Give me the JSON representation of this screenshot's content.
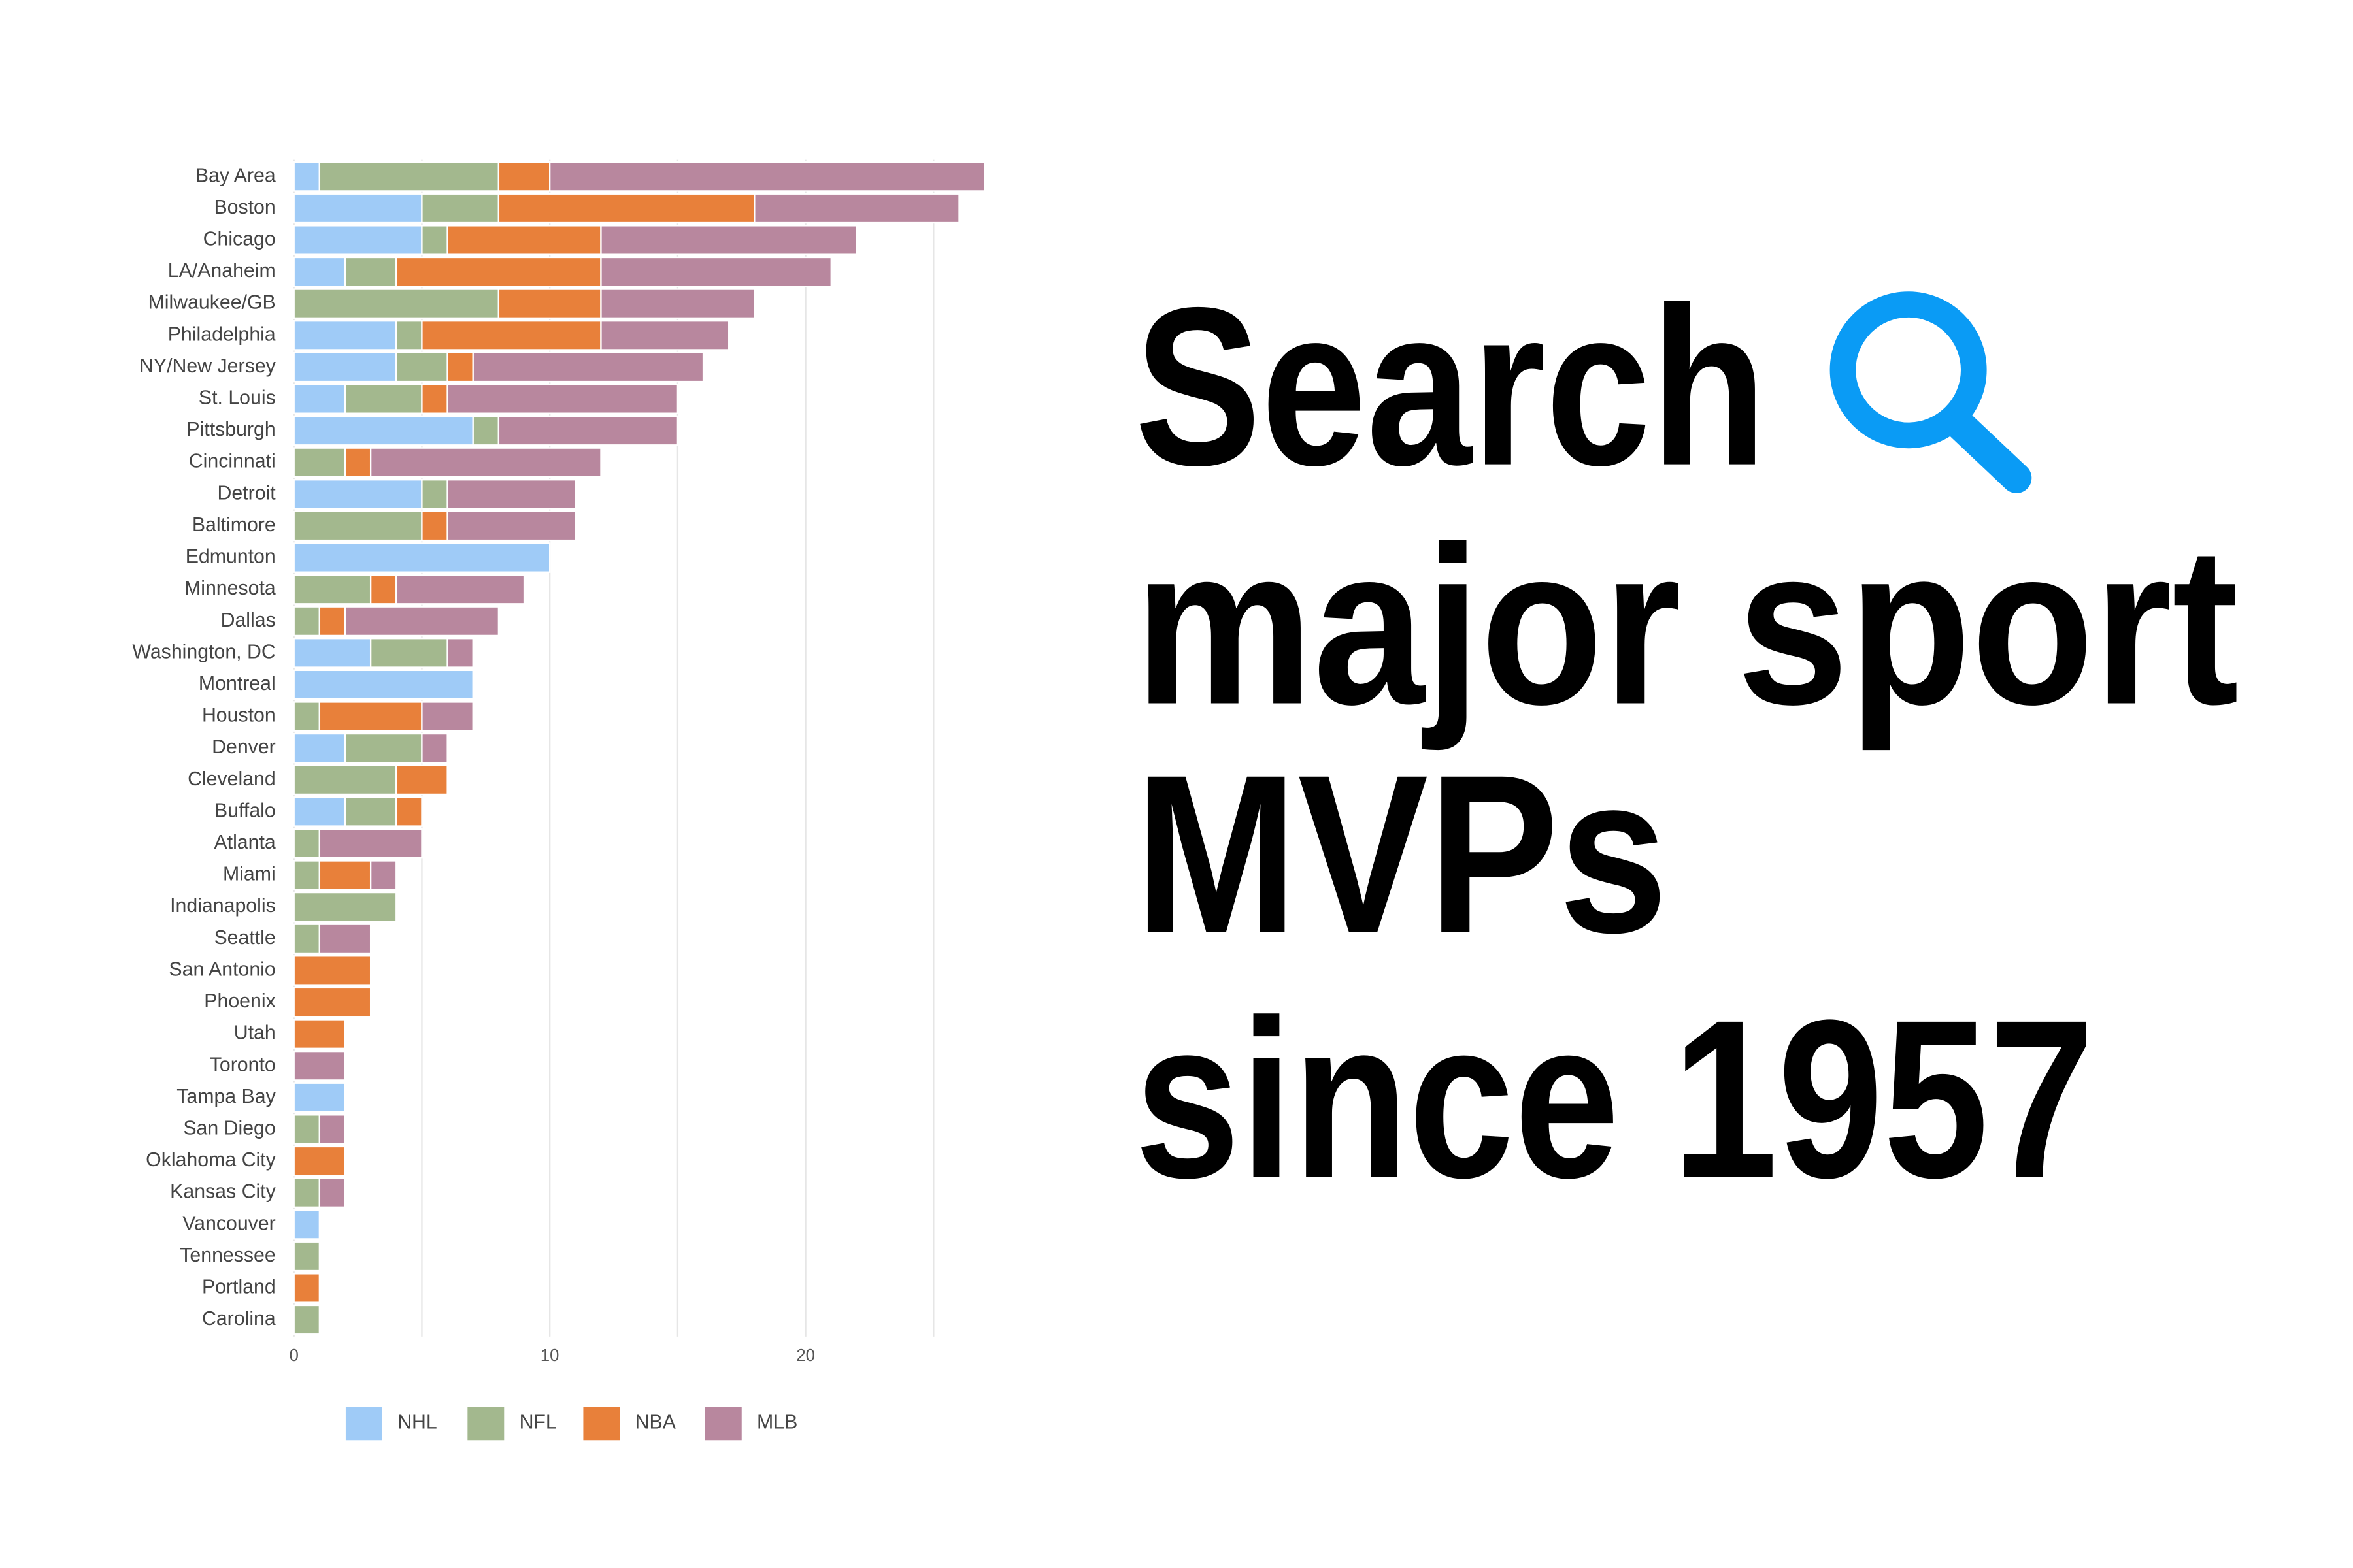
{
  "headline": [
    "Search",
    "major sport",
    "MVPs",
    "since 1957"
  ],
  "chart_data": {
    "type": "stacked-bar-horizontal",
    "categories": [
      "Bay Area",
      "Boston",
      "Chicago",
      "LA/Anaheim",
      "Milwaukee/GB",
      "Philadelphia",
      "NY/New Jersey",
      "St. Louis",
      "Pittsburgh",
      "Cincinnati",
      "Detroit",
      "Baltimore",
      "Edmunton",
      "Minnesota",
      "Dallas",
      "Washington, DC",
      "Montreal",
      "Houston",
      "Denver",
      "Cleveland",
      "Buffalo",
      "Atlanta",
      "Miami",
      "Indianapolis",
      "Seattle",
      "San Antonio",
      "Phoenix",
      "Utah",
      "Toronto",
      "Tampa Bay",
      "San Diego",
      "Oklahoma City",
      "Kansas City",
      "Vancouver",
      "Tennessee",
      "Portland",
      "Carolina"
    ],
    "series": [
      {
        "name": "NHL",
        "color": "#9fcbf7",
        "values": [
          1,
          5,
          5,
          2,
          0,
          4,
          4,
          2,
          7,
          0,
          5,
          0,
          10,
          0,
          0,
          3,
          7,
          0,
          2,
          0,
          2,
          0,
          0,
          0,
          0,
          0,
          0,
          0,
          0,
          2,
          0,
          0,
          0,
          1,
          0,
          0,
          0
        ]
      },
      {
        "name": "NFL",
        "color": "#a3b88e",
        "values": [
          7,
          3,
          1,
          2,
          8,
          1,
          2,
          3,
          1,
          2,
          1,
          5,
          0,
          3,
          1,
          3,
          0,
          1,
          3,
          4,
          2,
          1,
          1,
          4,
          1,
          0,
          0,
          0,
          0,
          0,
          1,
          0,
          1,
          0,
          1,
          0,
          1
        ]
      },
      {
        "name": "NBA",
        "color": "#e8803a",
        "values": [
          2,
          10,
          6,
          8,
          4,
          7,
          1,
          1,
          0,
          1,
          0,
          1,
          0,
          1,
          1,
          0,
          0,
          4,
          0,
          2,
          1,
          0,
          2,
          0,
          0,
          3,
          3,
          2,
          0,
          0,
          0,
          2,
          0,
          0,
          0,
          1,
          0
        ]
      },
      {
        "name": "MLB",
        "color": "#b8879e",
        "values": [
          17,
          8,
          10,
          9,
          6,
          5,
          9,
          9,
          7,
          9,
          5,
          5,
          0,
          5,
          6,
          1,
          0,
          2,
          1,
          0,
          0,
          4,
          1,
          0,
          2,
          0,
          0,
          0,
          2,
          0,
          1,
          0,
          1,
          0,
          0,
          0,
          0
        ]
      }
    ],
    "xlim": [
      0,
      27
    ],
    "xticks": [
      0,
      10,
      20
    ],
    "minor_xticks": [
      5,
      15,
      25
    ],
    "grid": true,
    "legend": "bottom"
  }
}
